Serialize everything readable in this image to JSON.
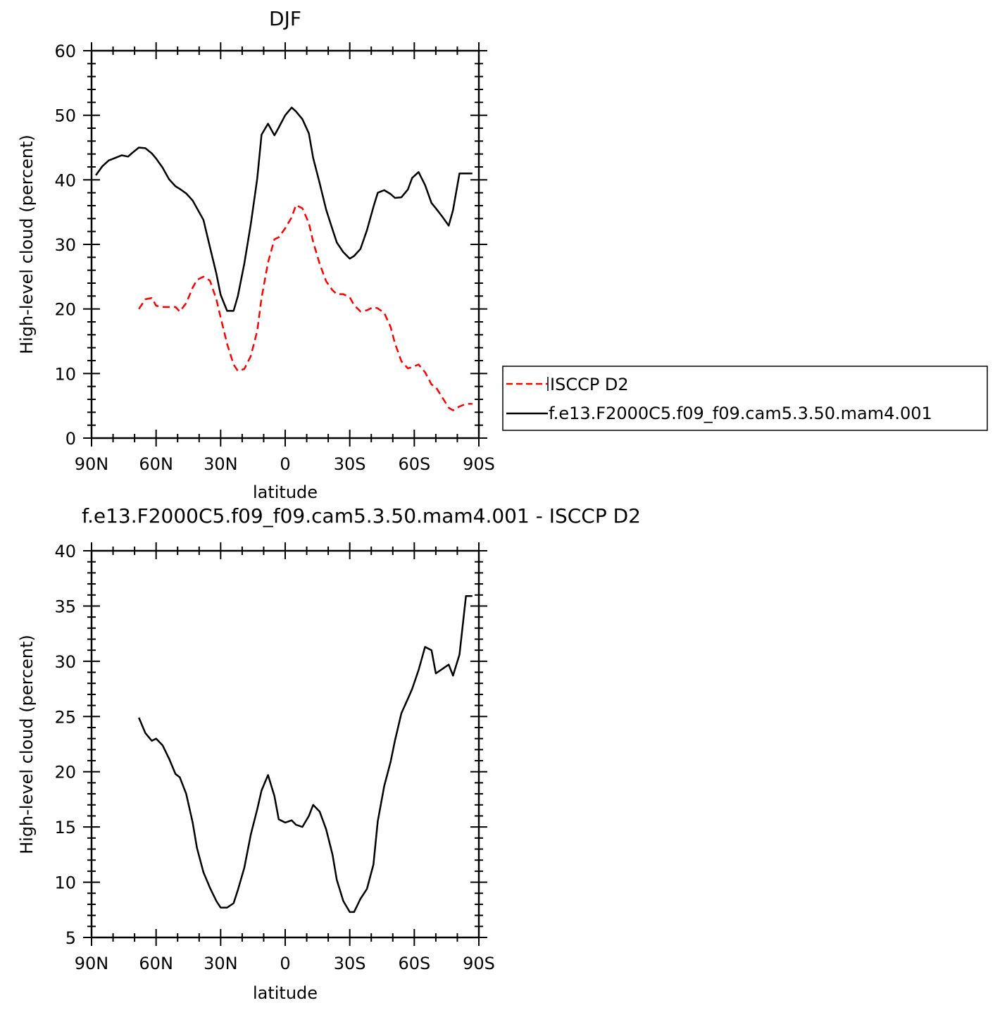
{
  "chart_data": [
    {
      "type": "line",
      "title": "DJF",
      "xlabel": "latitude",
      "ylabel": "High-level cloud (percent)",
      "xlim": [
        -90,
        90
      ],
      "ylim": [
        0,
        60
      ],
      "x_ticks": [
        -90,
        -60,
        -30,
        0,
        30,
        60,
        90
      ],
      "x_tick_labels": [
        "90N",
        "60N",
        "30N",
        "0",
        "30S",
        "60S",
        "90S"
      ],
      "y_ticks": [
        0,
        10,
        20,
        30,
        40,
        50,
        60
      ],
      "y_tick_labels": [
        "0",
        "10",
        "20",
        "30",
        "40",
        "50",
        "60"
      ],
      "legend_position": "right",
      "series": [
        {
          "name": "ISCCP D2",
          "color": "#ff0000",
          "dash": "dashed",
          "x": [
            -68,
            -65,
            -62,
            -60,
            -57,
            -54,
            -51,
            -49,
            -46,
            -43,
            -41,
            -38,
            -35,
            -32,
            -30,
            -27,
            -24,
            -22,
            -19,
            -16,
            -13,
            -11,
            -8,
            -5,
            -3,
            0,
            3,
            5,
            8,
            11,
            13,
            16,
            19,
            22,
            24,
            27,
            30,
            32,
            35,
            38,
            41,
            43,
            46,
            49,
            51,
            54,
            57,
            59,
            62,
            65,
            68,
            70,
            73,
            76,
            78,
            81,
            84,
            87
          ],
          "y": [
            20.0,
            21.5,
            21.7,
            20.5,
            20.3,
            20.3,
            20.3,
            19.6,
            20.9,
            23.3,
            24.5,
            25.0,
            24.4,
            21.5,
            18.7,
            14.6,
            11.4,
            10.4,
            10.7,
            12.7,
            16.6,
            21.7,
            27.2,
            30.8,
            31.1,
            32.5,
            34.2,
            36.1,
            35.6,
            33.3,
            30.4,
            27.0,
            24.3,
            22.9,
            22.3,
            22.3,
            21.8,
            20.6,
            19.6,
            19.8,
            20.3,
            20.1,
            19.4,
            17.2,
            14.7,
            11.9,
            10.8,
            11.0,
            11.4,
            10.2,
            8.3,
            7.9,
            6.3,
            4.7,
            4.3,
            4.9,
            5.3,
            5.3
          ]
        },
        {
          "name": "f.e13.F2000C5.f09_f09.cam5.3.50.mam4.001",
          "color": "#000000",
          "dash": "solid",
          "x": [
            -88,
            -85,
            -82,
            -79,
            -76,
            -73,
            -71,
            -68,
            -65,
            -62,
            -60,
            -57,
            -54,
            -51,
            -49,
            -46,
            -43,
            -41,
            -38,
            -35,
            -32,
            -30,
            -27,
            -24,
            -22,
            -19,
            -16,
            -13,
            -11,
            -8,
            -5,
            -3,
            0,
            3,
            5,
            8,
            11,
            13,
            16,
            19,
            22,
            24,
            27,
            30,
            32,
            35,
            38,
            41,
            43,
            46,
            49,
            51,
            54,
            57,
            59,
            62,
            65,
            68,
            70,
            73,
            76,
            78,
            81,
            84,
            87
          ],
          "y": [
            40.7,
            42.1,
            43.0,
            43.4,
            43.8,
            43.6,
            44.2,
            45.0,
            44.9,
            44.1,
            43.3,
            41.9,
            40.1,
            39.0,
            38.6,
            37.9,
            36.8,
            35.6,
            33.8,
            29.6,
            25.5,
            22.2,
            19.7,
            19.7,
            22.0,
            27.0,
            33.1,
            40.2,
            47.0,
            48.7,
            46.9,
            48.1,
            50.0,
            51.2,
            50.6,
            49.4,
            47.2,
            43.4,
            39.5,
            35.4,
            32.3,
            30.3,
            28.8,
            27.8,
            28.2,
            29.3,
            32.2,
            35.8,
            38.0,
            38.4,
            37.8,
            37.2,
            37.3,
            38.5,
            40.3,
            41.2,
            39.2,
            36.4,
            35.6,
            34.3,
            32.9,
            35.3,
            41.0,
            41.0,
            41.0
          ]
        }
      ]
    },
    {
      "type": "line",
      "title": "f.e13.F2000C5.f09_f09.cam5.3.50.mam4.001 - ISCCP D2",
      "xlabel": "latitude",
      "ylabel": "High-level cloud (percent)",
      "xlim": [
        -90,
        90
      ],
      "ylim": [
        5,
        40
      ],
      "x_ticks": [
        -90,
        -60,
        -30,
        0,
        30,
        60,
        90
      ],
      "x_tick_labels": [
        "90N",
        "60N",
        "30N",
        "0",
        "30S",
        "60S",
        "90S"
      ],
      "y_ticks": [
        5,
        10,
        15,
        20,
        25,
        30,
        35,
        40
      ],
      "y_tick_labels": [
        "5",
        "10",
        "15",
        "20",
        "25",
        "30",
        "35",
        "40"
      ],
      "series": [
        {
          "color": "#000000",
          "dash": "solid",
          "x": [
            -68,
            -65,
            -62,
            -60,
            -57,
            -54,
            -51,
            -49,
            -46,
            -43,
            -41,
            -38,
            -35,
            -32,
            -30,
            -27,
            -24,
            -22,
            -19,
            -16,
            -13,
            -11,
            -8,
            -5,
            -3,
            0,
            3,
            5,
            8,
            11,
            13,
            16,
            19,
            22,
            24,
            27,
            30,
            32,
            35,
            38,
            41,
            43,
            46,
            49,
            51,
            54,
            57,
            59,
            62,
            65,
            68,
            70,
            73,
            76,
            78,
            81,
            84,
            87
          ],
          "y": [
            24.9,
            23.5,
            22.8,
            23.0,
            22.4,
            21.2,
            19.8,
            19.5,
            18.0,
            15.4,
            13.1,
            10.9,
            9.5,
            8.3,
            7.7,
            7.7,
            8.1,
            9.3,
            11.3,
            14.3,
            16.6,
            18.3,
            19.7,
            17.8,
            15.7,
            15.4,
            15.6,
            15.2,
            15.0,
            16.0,
            17.0,
            16.4,
            14.8,
            12.5,
            10.2,
            8.3,
            7.3,
            7.3,
            8.5,
            9.4,
            11.6,
            15.5,
            18.7,
            20.9,
            22.8,
            25.3,
            26.6,
            27.5,
            29.2,
            31.3,
            31.0,
            28.9,
            29.3,
            29.7,
            28.7,
            30.6,
            35.9,
            35.9
          ]
        }
      ]
    }
  ]
}
